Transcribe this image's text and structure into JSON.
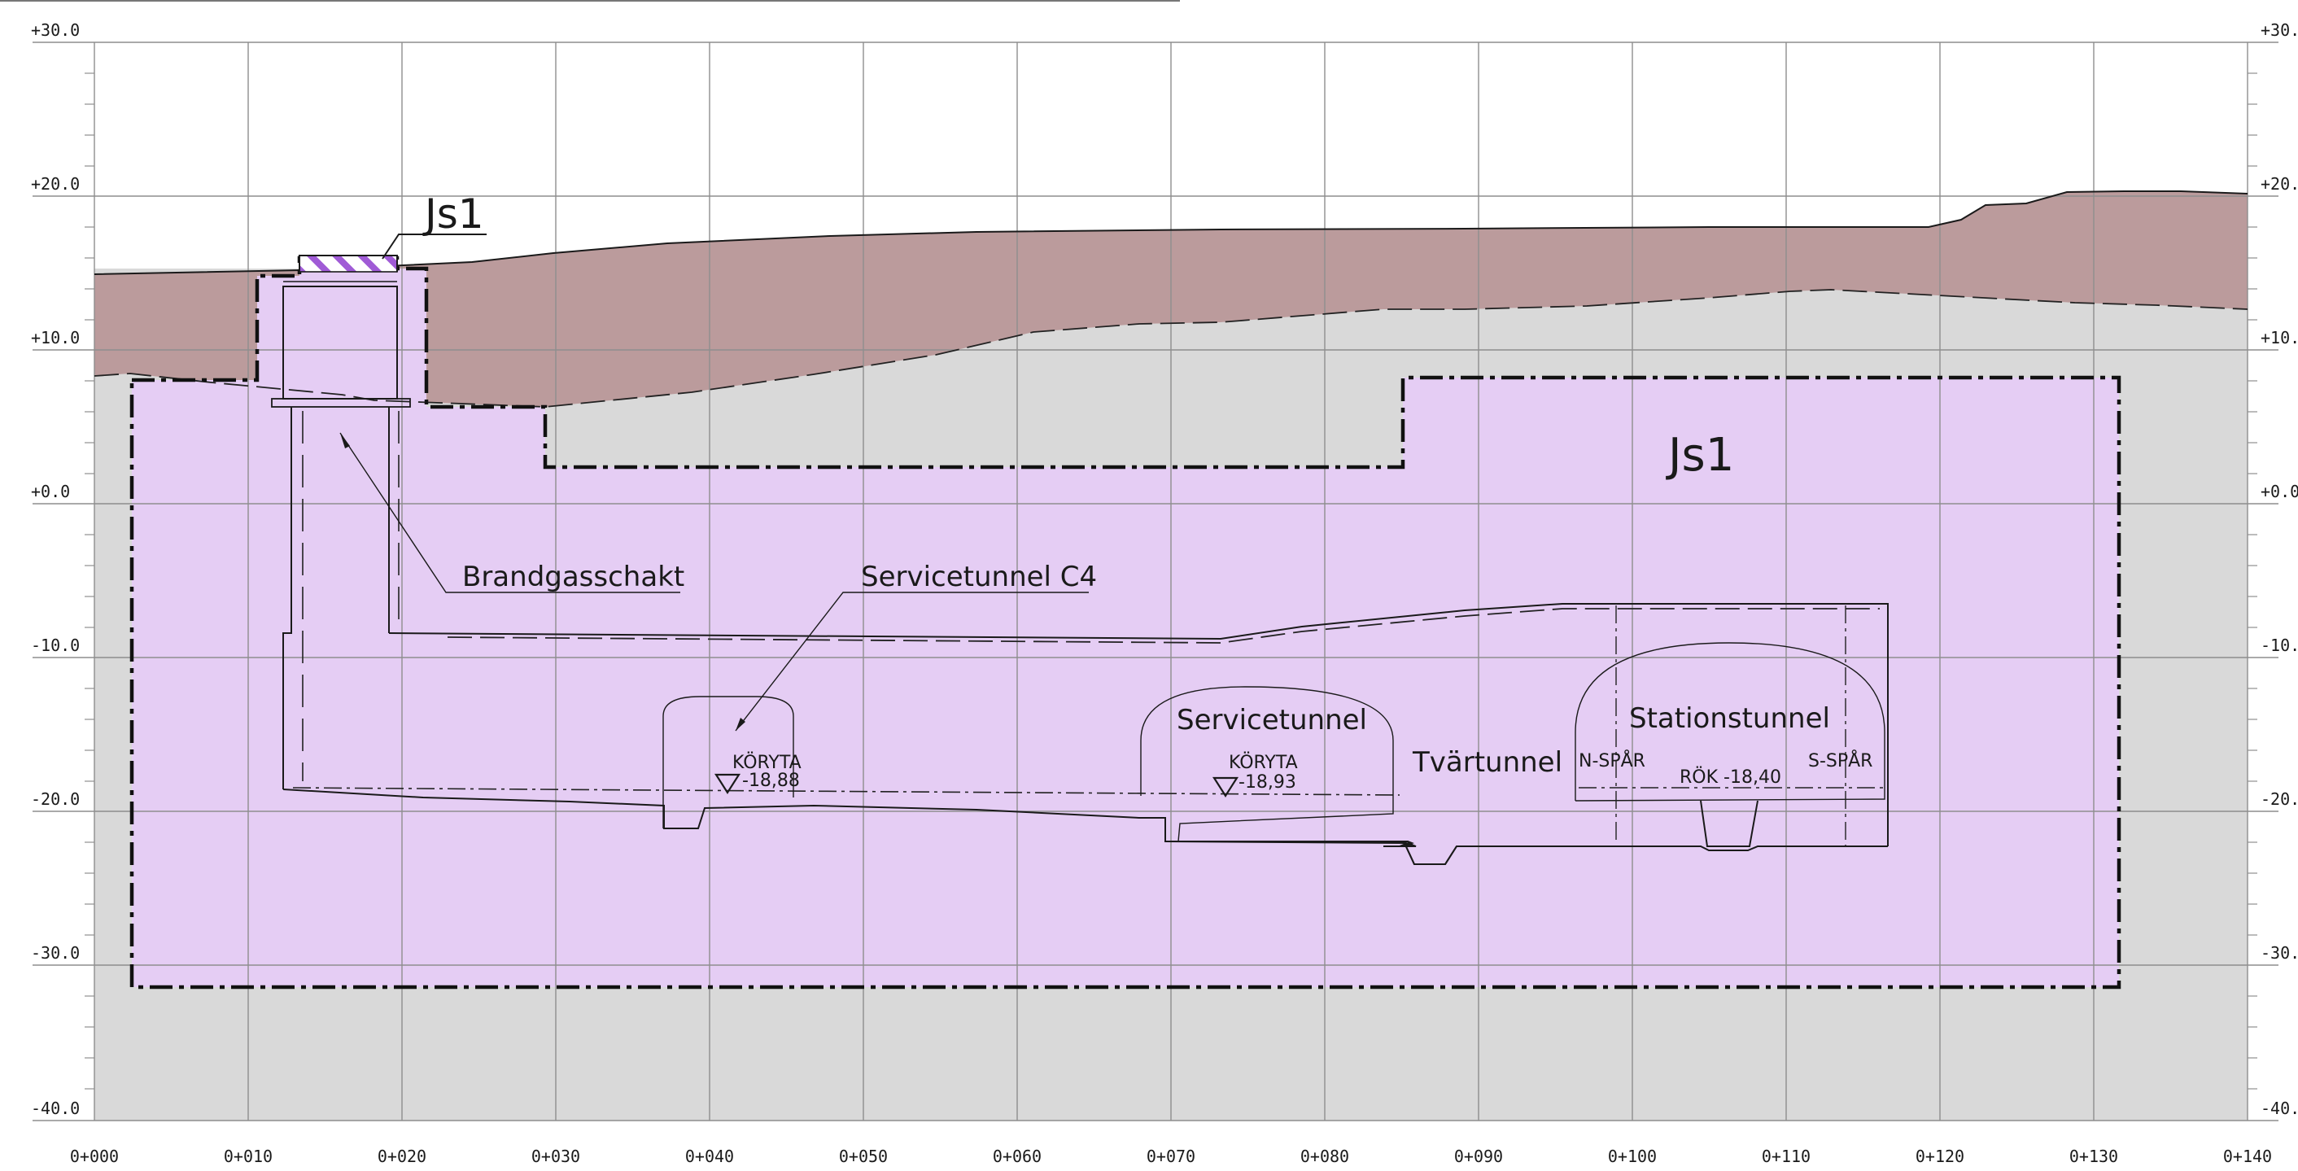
{
  "header_rule": "",
  "chart_data": {
    "type": "diagram",
    "x_axis": {
      "ticks": [
        "0+000",
        "0+010",
        "0+020",
        "0+030",
        "0+040",
        "0+050",
        "0+060",
        "0+070",
        "0+080",
        "0+090",
        "0+100",
        "0+110",
        "0+120",
        "0+130",
        "0+140"
      ],
      "range": [
        0,
        140
      ]
    },
    "y_axis": {
      "ticks": [
        "+30.0",
        "+20.0",
        "+10.0",
        "+0.0",
        "-10.0",
        "-20.0",
        "-30.0",
        "-40.0"
      ],
      "range": [
        -40,
        30
      ]
    },
    "grid": true
  },
  "labels": {
    "js1_top": "Js1",
    "js1_zone": "Js1",
    "brandgasschakt": "Brandgasschakt",
    "servicetunnel_c4": "Servicetunnel C4",
    "servicetunnel": "Servicetunnel",
    "tvartunnel": "Tvärtunnel",
    "stationstunnel": "Stationstunnel",
    "koryta_1": "KÖRYTA",
    "koryta_1_level": "-18,88",
    "koryta_2": "KÖRYTA",
    "koryta_2_level": "-18,93",
    "n_spar": "N-SPÅR",
    "s_spar": "S-SPÅR",
    "rok_level": "RÖK -18,40"
  },
  "colors": {
    "soil": "#bb9b9c",
    "rock": "#d9d9d9",
    "zone": "#e5cdf4",
    "hatch": "#a05bd6",
    "grid": "#8e8e8e",
    "line": "#1a1a1a"
  }
}
